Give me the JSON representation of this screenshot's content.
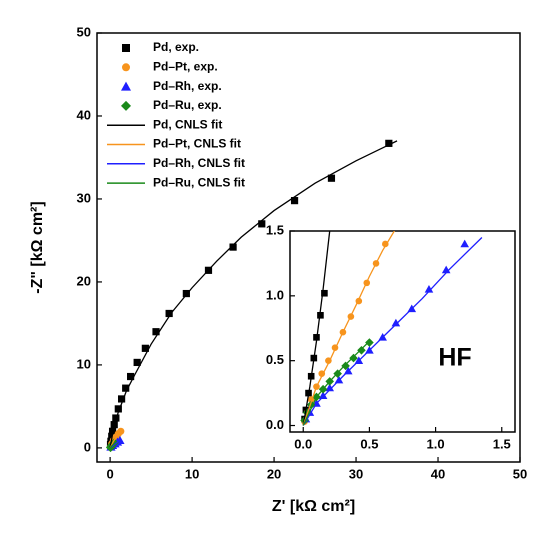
{
  "chart_data": [
    {
      "type": "scatter",
      "xlabel": "Z' [kΩ cm²]",
      "ylabel": "-Z\" [kΩ cm²]",
      "xlim": [
        -1.6,
        50
      ],
      "ylim": [
        -1.7,
        50
      ],
      "xticks": [
        0,
        10,
        20,
        30,
        40,
        50
      ],
      "yticks": [
        0,
        10,
        20,
        30,
        40,
        50
      ],
      "legend": "upper left",
      "series": [
        {
          "name": "Pd, exp.",
          "color": "#000000",
          "marker": "square",
          "x": [
            0.05,
            0.1,
            0.2,
            0.3,
            0.5,
            0.7,
            1.0,
            1.4,
            1.9,
            2.5,
            3.3,
            4.3,
            5.6,
            7.2,
            9.3,
            12,
            15,
            18.5,
            22.5,
            27,
            34
          ],
          "values": [
            0.4,
            0.8,
            1.4,
            2.0,
            2.8,
            3.6,
            4.7,
            5.9,
            7.2,
            8.6,
            10.3,
            12.0,
            14.0,
            16.2,
            18.6,
            21.4,
            24.2,
            27.0,
            29.8,
            32.5,
            36.7
          ]
        },
        {
          "name": "Pd–Pt, exp.",
          "color": "#f7941d",
          "marker": "circle",
          "x": [
            0.05,
            0.2,
            0.4,
            0.7,
            1.0,
            1.3
          ],
          "values": [
            0.1,
            0.5,
            0.9,
            1.3,
            1.7,
            2.0
          ]
        },
        {
          "name": "Pd–Rh, exp.",
          "color": "#1f1fff",
          "marker": "triangle",
          "x": [
            0.1,
            0.3,
            0.6,
            0.9,
            1.2
          ],
          "values": [
            0.1,
            0.3,
            0.5,
            0.7,
            0.9
          ]
        },
        {
          "name": "Pd–Ru, exp.",
          "color": "#1a8a1a",
          "marker": "diamond",
          "x": [
            0.05,
            0.15,
            0.3,
            0.5
          ],
          "values": [
            0.05,
            0.2,
            0.4,
            0.6
          ]
        },
        {
          "name": "Pd, CNLS fit",
          "color": "#000000",
          "marker": "line",
          "x": [
            0,
            0.5,
            1,
            2,
            3,
            5,
            7.5,
            10,
            13,
            16,
            20,
            25,
            30,
            35
          ],
          "values": [
            0,
            2.8,
            4.3,
            6.9,
            8.8,
            12.5,
            16.3,
            19.3,
            22.5,
            25.4,
            28.6,
            31.9,
            34.6,
            37
          ]
        },
        {
          "name": "Pd–Pt, CNLS fit",
          "color": "#f7941d",
          "marker": "line",
          "x": [
            0,
            0.3,
            0.6,
            1,
            1.4
          ],
          "values": [
            0,
            0.6,
            1.1,
            1.6,
            2.1
          ]
        },
        {
          "name": "Pd–Rh, CNLS fit",
          "color": "#1f1fff",
          "marker": "line",
          "x": [
            0,
            0.4,
            0.8,
            1.3
          ],
          "values": [
            0,
            0.3,
            0.6,
            1.0
          ]
        },
        {
          "name": "Pd–Ru, CNLS fit",
          "color": "#1a8a1a",
          "marker": "line",
          "x": [
            0,
            0.2,
            0.4,
            0.6
          ],
          "values": [
            0,
            0.25,
            0.45,
            0.65
          ]
        }
      ]
    },
    {
      "type": "scatter",
      "annotation": "HF",
      "xlim": [
        -0.1,
        1.6
      ],
      "ylim": [
        -0.05,
        1.5
      ],
      "xticks": [
        {
          "value": 0,
          "label": "0.0"
        },
        0.5,
        {
          "value": 1,
          "label": "1.0"
        },
        1.5
      ],
      "yticks": [
        {
          "value": 0,
          "label": "0.0"
        },
        0.5,
        {
          "value": 1,
          "label": "1.0"
        },
        1.5
      ],
      "series": [
        {
          "color": "#000000",
          "marker": "square",
          "x": [
            0.01,
            0.02,
            0.04,
            0.06,
            0.08,
            0.1,
            0.13,
            0.16
          ],
          "values": [
            0.05,
            0.12,
            0.25,
            0.38,
            0.52,
            0.68,
            0.85,
            1.02
          ]
        },
        {
          "color": "#f7941d",
          "marker": "circle",
          "x": [
            0.01,
            0.03,
            0.06,
            0.1,
            0.14,
            0.19,
            0.24,
            0.3,
            0.36,
            0.42,
            0.48,
            0.55,
            0.62
          ],
          "values": [
            0.03,
            0.1,
            0.2,
            0.3,
            0.4,
            0.5,
            0.6,
            0.72,
            0.84,
            0.96,
            1.1,
            1.25,
            1.4
          ]
        },
        {
          "color": "#1f1fff",
          "marker": "triangle",
          "x": [
            0.02,
            0.05,
            0.1,
            0.15,
            0.2,
            0.27,
            0.34,
            0.42,
            0.5,
            0.6,
            0.7,
            0.82,
            0.95,
            1.08,
            1.22
          ],
          "values": [
            0.05,
            0.1,
            0.17,
            0.23,
            0.29,
            0.35,
            0.42,
            0.5,
            0.58,
            0.68,
            0.79,
            0.9,
            1.05,
            1.2,
            1.4
          ]
        },
        {
          "color": "#1a8a1a",
          "marker": "diamond",
          "x": [
            0.01,
            0.03,
            0.06,
            0.1,
            0.15,
            0.2,
            0.26,
            0.32,
            0.38,
            0.44,
            0.5
          ],
          "values": [
            0.04,
            0.1,
            0.16,
            0.22,
            0.28,
            0.34,
            0.4,
            0.46,
            0.52,
            0.58,
            0.64
          ]
        },
        {
          "color": "#000000",
          "marker": "line",
          "x": [
            0,
            0.05,
            0.1,
            0.15,
            0.2
          ],
          "values": [
            0,
            0.3,
            0.65,
            1.05,
            1.5
          ]
        },
        {
          "color": "#f7941d",
          "marker": "line",
          "x": [
            0,
            0.1,
            0.2,
            0.3,
            0.4,
            0.5,
            0.6,
            0.7
          ],
          "values": [
            0,
            0.3,
            0.5,
            0.72,
            0.93,
            1.15,
            1.35,
            1.52
          ]
        },
        {
          "color": "#1f1fff",
          "marker": "line",
          "x": [
            0,
            0.1,
            0.3,
            0.5,
            0.7,
            0.9,
            1.1,
            1.35
          ],
          "values": [
            0,
            0.17,
            0.38,
            0.58,
            0.78,
            0.98,
            1.2,
            1.45
          ]
        },
        {
          "color": "#1a8a1a",
          "marker": "line",
          "x": [
            0,
            0.1,
            0.2,
            0.3,
            0.4,
            0.5
          ],
          "values": [
            0,
            0.22,
            0.34,
            0.45,
            0.55,
            0.65
          ]
        }
      ]
    }
  ]
}
